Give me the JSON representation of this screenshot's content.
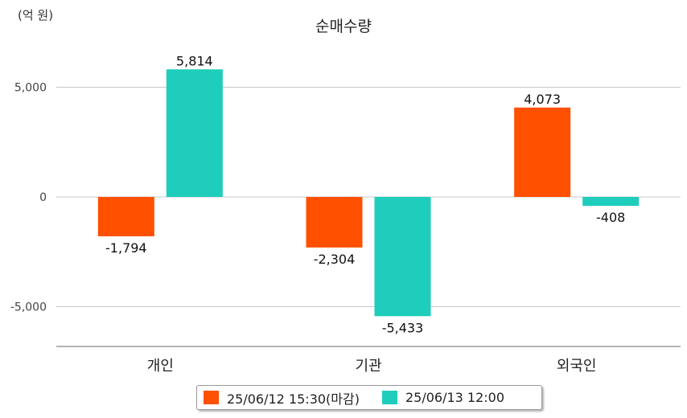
{
  "unit_label": "(억 원)",
  "chart_data": {
    "type": "bar",
    "title": "순매수량",
    "xlabel": "",
    "ylabel": "",
    "categories": [
      "개인",
      "기관",
      "외국인"
    ],
    "series": [
      {
        "name": "25/06/12 15:30(마감)",
        "color": "#ff5000",
        "values": [
          -1794,
          -2304,
          4073
        ]
      },
      {
        "name": "25/06/13 12:00",
        "color": "#1ecdbb",
        "values": [
          5814,
          -5433,
          -408
        ]
      }
    ],
    "value_labels": [
      [
        "-1,794",
        "-2,304",
        "4,073"
      ],
      [
        "5,814",
        "-5,433",
        "-408"
      ]
    ],
    "yticks": [
      5000,
      0,
      -5000
    ],
    "ytick_labels": [
      "5,000",
      "0",
      "-5,000"
    ],
    "ylim": [
      -6800,
      6000
    ],
    "grid": true,
    "legend_position": "bottom"
  }
}
